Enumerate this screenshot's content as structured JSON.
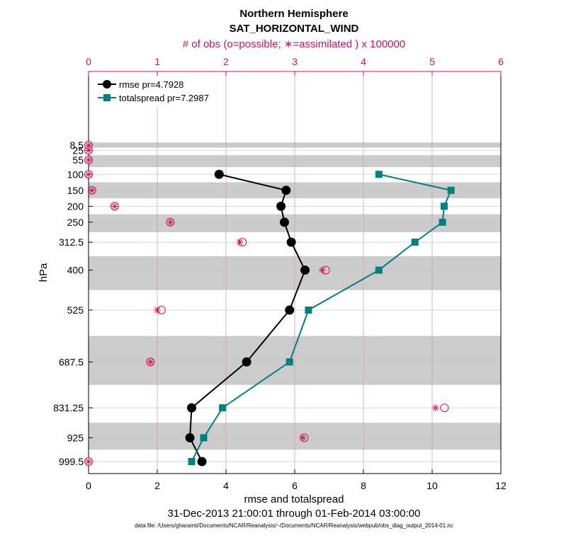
{
  "chart_data": {
    "type": "line",
    "title": "Northern Hemisphere",
    "subtitle": "SAT_HORIZONTAL_WIND",
    "top_axis_label": "# of obs (o=possible; ∗=assimilated ) x 100000",
    "xlabel": "rmse and totalspread",
    "ylabel": "hPa",
    "date_range": "31-Dec-2013 21:00:01 through 01-Feb-2014 03:00:00",
    "footnote": "data file: /Users/gharamti/Documents/NCAR/Reanalysis/~/Documents/NCAR/Reanalysis/webpub/obs_diag_output_2014-01.nc",
    "xlim": [
      0,
      12
    ],
    "x_ticks": [
      "0",
      "2",
      "4",
      "6",
      "8",
      "10",
      "12"
    ],
    "top_xlim": [
      0,
      6
    ],
    "top_ticks": [
      "0",
      "1",
      "2",
      "3",
      "4",
      "5",
      "6"
    ],
    "levels": [
      8.5,
      25,
      55,
      100,
      150,
      200,
      250,
      312.5,
      400,
      525,
      687.5,
      831.25,
      925,
      999.5
    ],
    "level_labels": [
      "8.5",
      "25",
      "55",
      "100",
      "150",
      "200",
      "250",
      "312.5",
      "400",
      "525",
      "687.5",
      "831.25",
      "925",
      "999.5"
    ],
    "series": [
      {
        "name": "rmse pr=4.7928",
        "color": "#000000",
        "x": [
          3.8,
          5.75,
          5.6,
          5.7,
          5.9,
          6.3,
          5.85,
          4.6,
          3.0,
          2.95,
          3.3
        ],
        "levels": [
          100,
          150,
          200,
          250,
          312.5,
          400,
          525,
          687.5,
          831.25,
          925,
          999.5
        ]
      },
      {
        "name": "totalspread pr=7.2987",
        "color": "#00807f",
        "x": [
          8.45,
          10.55,
          10.35,
          10.3,
          9.5,
          8.45,
          6.4,
          5.85,
          3.9,
          3.35,
          3.0
        ],
        "levels": [
          100,
          150,
          200,
          250,
          312.5,
          400,
          525,
          687.5,
          831.25,
          925,
          999.5
        ]
      }
    ],
    "obs_counts": {
      "levels": [
        8.5,
        25,
        55,
        100,
        150,
        200,
        250,
        312.5,
        400,
        525,
        687.5,
        831.25,
        925,
        999.5
      ],
      "possible": [
        0.0,
        0.0,
        0.0,
        0.0,
        0.05,
        0.38,
        1.19,
        2.24,
        3.45,
        1.06,
        0.9,
        5.18,
        3.14,
        0.0
      ],
      "assimilated": [
        0.0,
        0.0,
        0.0,
        0.0,
        0.05,
        0.38,
        1.19,
        2.2,
        3.4,
        1.0,
        0.9,
        5.05,
        3.12,
        0.0
      ]
    },
    "colors": {
      "axis_top": "#d6105a",
      "band": "#cccccc",
      "grid": "#c9c9c9",
      "topgrid": "#d6a0b4"
    }
  }
}
